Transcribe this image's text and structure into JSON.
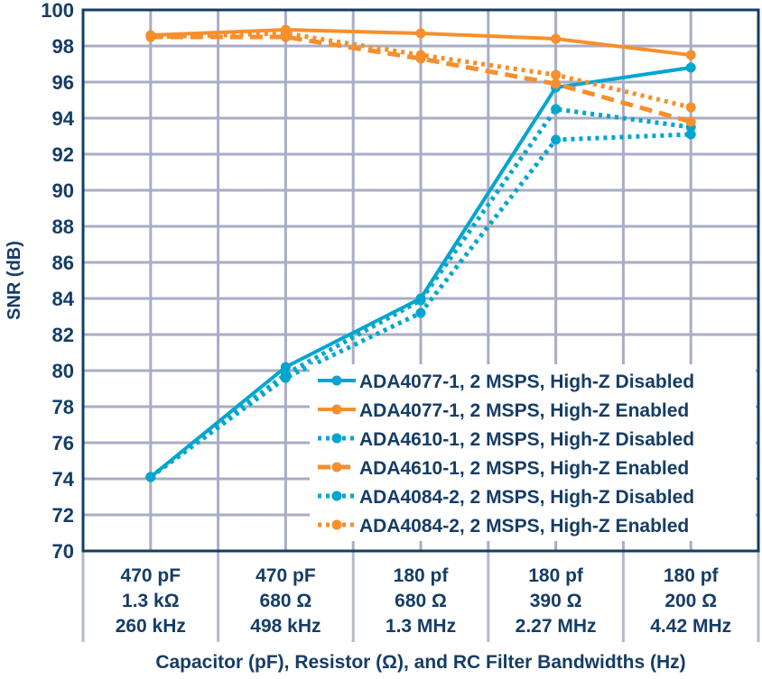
{
  "chart_data": {
    "type": "line",
    "title": "",
    "xlabel": "Capacitor (pF), Resistor (Ω), and RC Filter Bandwidths (Hz)",
    "ylabel": "SNR (dB)",
    "ylim": [
      70,
      100
    ],
    "yticks": [
      70,
      72,
      74,
      76,
      78,
      80,
      82,
      84,
      86,
      88,
      90,
      92,
      94,
      96,
      98,
      100
    ],
    "grid": true,
    "legend_position": "bottom-right",
    "categories": [
      [
        "470 pF",
        "1.3 kΩ",
        "260 kHz"
      ],
      [
        "470 pF",
        "680 Ω",
        "498 kHz"
      ],
      [
        "180 pf",
        "680 Ω",
        "1.3 MHz"
      ],
      [
        "180 pf",
        "390 Ω",
        "2.27 MHz"
      ],
      [
        "180 pf",
        "200 Ω",
        "4.42 MHz"
      ]
    ],
    "series": [
      {
        "name": "ADA4077-1, 2 MSPS, High-Z Disabled",
        "color": "#00a6d0",
        "style": "solid",
        "values": [
          74.1,
          80.2,
          84.0,
          95.7,
          96.8
        ]
      },
      {
        "name": "ADA4077-1, 2 MSPS, High-Z Enabled",
        "color": "#f68f2c",
        "style": "solid",
        "values": [
          98.6,
          98.9,
          98.7,
          98.4,
          97.5
        ]
      },
      {
        "name": "ADA4610-1, 2 MSPS, High-Z Disabled",
        "color": "#00a6d0",
        "style": "dotted",
        "values": [
          74.1,
          79.8,
          83.9,
          94.5,
          93.5
        ]
      },
      {
        "name": "ADA4610-1, 2 MSPS, High-Z Enabled",
        "color": "#f68f2c",
        "style": "dashed",
        "values": [
          98.5,
          98.5,
          97.3,
          95.9,
          93.8
        ]
      },
      {
        "name": "ADA4084-2, 2 MSPS, High-Z Disabled",
        "color": "#00a6d0",
        "style": "dotted",
        "values": [
          74.1,
          79.6,
          83.2,
          92.8,
          93.1
        ]
      },
      {
        "name": "ADA4084-2, 2 MSPS, High-Z Enabled",
        "color": "#f68f2c",
        "style": "dotted",
        "values": [
          98.5,
          98.7,
          97.5,
          96.4,
          94.6
        ]
      }
    ]
  }
}
